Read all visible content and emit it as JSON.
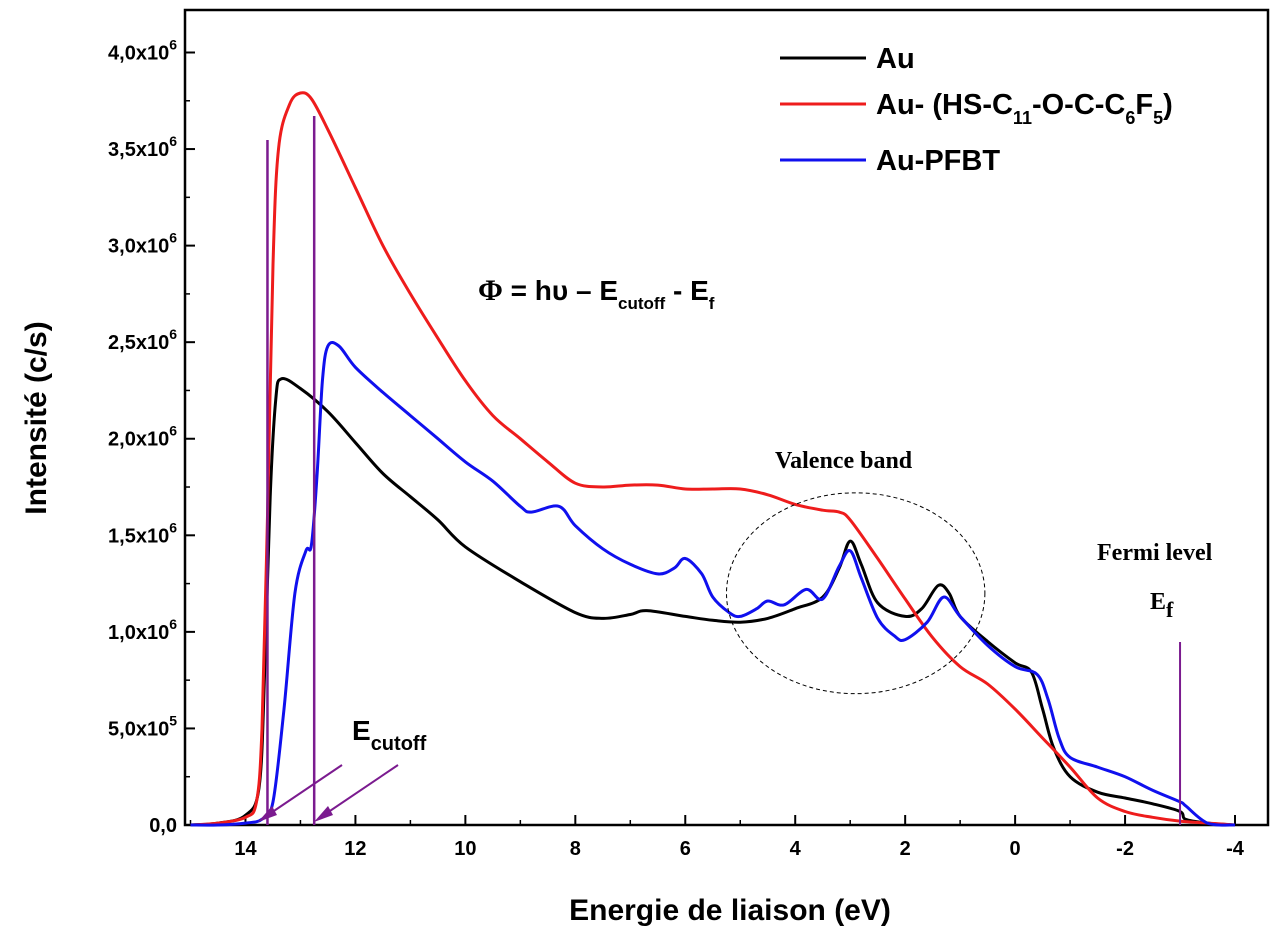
{
  "chart_data": {
    "type": "line",
    "xlabel": "Energie de liaison (eV)",
    "ylabel": "Intensité  (c/s)",
    "xlim": [
      15.1,
      -4.6
    ],
    "ylim": [
      0,
      4.22
    ],
    "x_reversed": true,
    "y_scale_note": "y values in units of 10^6 c/s",
    "x_ticks": [
      14,
      12,
      10,
      8,
      6,
      4,
      2,
      0,
      -2,
      -4
    ],
    "x_tick_labels": [
      "14",
      "12",
      "10",
      "8",
      "6",
      "4",
      "2",
      "0",
      "-2",
      "-4"
    ],
    "y_ticks": [
      0,
      0.5,
      1.0,
      1.5,
      2.0,
      2.5,
      3.0,
      3.5,
      4.0
    ],
    "y_tick_labels": [
      {
        "mantissa": "0,0",
        "exp": ""
      },
      {
        "mantissa": "5,0x10",
        "exp": "5"
      },
      {
        "mantissa": "1,0x10",
        "exp": "6"
      },
      {
        "mantissa": "1,5x10",
        "exp": "6"
      },
      {
        "mantissa": "2,0x10",
        "exp": "6"
      },
      {
        "mantissa": "2,5x10",
        "exp": "6"
      },
      {
        "mantissa": "3,0x10",
        "exp": "6"
      },
      {
        "mantissa": "3,5x10",
        "exp": "6"
      },
      {
        "mantissa": "4,0x10",
        "exp": "6"
      }
    ],
    "legend_position": "top-right",
    "series": [
      {
        "name": "Au",
        "color": "#000000",
        "x": [
          15.0,
          14.5,
          14.0,
          13.75,
          13.65,
          13.55,
          13.45,
          13.35,
          13.0,
          12.5,
          12.0,
          11.5,
          11.0,
          10.5,
          10.0,
          9.0,
          8.0,
          7.5,
          7.0,
          6.7,
          6.0,
          5.5,
          5.0,
          4.5,
          4.0,
          3.5,
          3.2,
          3.0,
          2.8,
          2.5,
          2.0,
          1.7,
          1.4,
          1.2,
          1.0,
          0.5,
          0.0,
          -0.3,
          -0.5,
          -0.7,
          -1.0,
          -1.5,
          -2.0,
          -2.5,
          -3.0,
          -3.1,
          -3.5,
          -4.0
        ],
        "y": [
          0.0,
          0.01,
          0.05,
          0.2,
          0.8,
          1.7,
          2.2,
          2.31,
          2.26,
          2.14,
          1.98,
          1.82,
          1.7,
          1.58,
          1.44,
          1.26,
          1.1,
          1.07,
          1.09,
          1.11,
          1.08,
          1.06,
          1.05,
          1.07,
          1.12,
          1.18,
          1.33,
          1.47,
          1.35,
          1.15,
          1.08,
          1.12,
          1.24,
          1.2,
          1.08,
          0.95,
          0.84,
          0.79,
          0.6,
          0.4,
          0.25,
          0.17,
          0.14,
          0.11,
          0.07,
          0.03,
          0.01,
          0.0
        ]
      },
      {
        "name": "Au- (HS-C11-O-C-C6F5)",
        "color": "#ee1c1c",
        "x": [
          15.0,
          14.5,
          14.0,
          13.8,
          13.7,
          13.6,
          13.5,
          13.4,
          13.2,
          13.0,
          12.8,
          12.5,
          12.0,
          11.5,
          11.0,
          10.5,
          10.0,
          9.5,
          9.0,
          8.5,
          8.0,
          7.5,
          7.0,
          6.5,
          6.0,
          5.5,
          5.0,
          4.5,
          4.0,
          3.5,
          3.2,
          3.0,
          2.5,
          2.0,
          1.5,
          1.0,
          0.5,
          0.0,
          -0.5,
          -1.0,
          -1.5,
          -2.0,
          -2.5,
          -3.0,
          -3.5,
          -4.0
        ],
        "y": [
          0.0,
          0.01,
          0.04,
          0.12,
          0.5,
          1.6,
          2.9,
          3.5,
          3.73,
          3.79,
          3.76,
          3.6,
          3.3,
          3.0,
          2.75,
          2.52,
          2.3,
          2.12,
          2.0,
          1.88,
          1.77,
          1.75,
          1.76,
          1.76,
          1.74,
          1.74,
          1.74,
          1.71,
          1.66,
          1.63,
          1.62,
          1.58,
          1.38,
          1.17,
          0.97,
          0.82,
          0.73,
          0.6,
          0.45,
          0.3,
          0.14,
          0.07,
          0.04,
          0.02,
          0.01,
          0.0
        ]
      },
      {
        "name": "Au-PFBT",
        "color": "#1010ee",
        "x": [
          15.0,
          14.5,
          14.0,
          13.7,
          13.5,
          13.3,
          13.1,
          12.9,
          12.8,
          12.7,
          12.6,
          12.5,
          12.3,
          12.0,
          11.5,
          11.0,
          10.5,
          10.0,
          9.5,
          9.0,
          8.8,
          8.3,
          8.0,
          7.5,
          7.0,
          6.5,
          6.2,
          6.0,
          5.7,
          5.5,
          5.2,
          5.0,
          4.7,
          4.5,
          4.2,
          3.8,
          3.5,
          3.2,
          3.0,
          2.8,
          2.5,
          2.2,
          2.0,
          1.6,
          1.3,
          1.0,
          0.5,
          0.0,
          -0.4,
          -0.6,
          -0.8,
          -1.0,
          -1.5,
          -2.0,
          -2.5,
          -3.0,
          -3.1,
          -3.5,
          -4.0
        ],
        "y": [
          0.0,
          0.0,
          0.01,
          0.03,
          0.12,
          0.6,
          1.2,
          1.42,
          1.45,
          1.8,
          2.3,
          2.48,
          2.48,
          2.37,
          2.24,
          2.12,
          2.0,
          1.88,
          1.78,
          1.65,
          1.62,
          1.65,
          1.55,
          1.43,
          1.35,
          1.3,
          1.33,
          1.38,
          1.3,
          1.18,
          1.1,
          1.08,
          1.12,
          1.16,
          1.14,
          1.22,
          1.17,
          1.34,
          1.42,
          1.28,
          1.07,
          0.98,
          0.96,
          1.05,
          1.18,
          1.08,
          0.93,
          0.82,
          0.78,
          0.65,
          0.45,
          0.35,
          0.3,
          0.25,
          0.18,
          0.12,
          0.1,
          0.01,
          0.0
        ]
      }
    ],
    "annotations": {
      "formula": {
        "phi": "Φ",
        "eq": " = hυ – E",
        "sub1": "cutoff",
        "mid": " - E",
        "sub2": "f"
      },
      "valence_band": "Valence band",
      "fermi_level": "Fermi level",
      "ef": {
        "main": "E",
        "sub": "f"
      },
      "ecutoff": {
        "main": "E",
        "sub": "cutoff"
      },
      "legend_labels": {
        "au": "Au",
        "thiol": {
          "t1": "Au- (HS-C",
          "s1": "11",
          "t2": "-O-C-C",
          "s2": "6",
          "t3": "F",
          "s3": "5",
          "t4": ")"
        },
        "pfbt": "Au-PFBT"
      },
      "cutoff_markers_x": [
        13.6,
        12.75
      ],
      "fermi_marker_x": -3.0,
      "valence_ellipse": {
        "cx": 2.9,
        "cy": 1.2,
        "rx": 2.35,
        "ry": 0.52
      }
    },
    "colors": {
      "marker": "#7b1b8f",
      "axis": "#000000"
    }
  }
}
